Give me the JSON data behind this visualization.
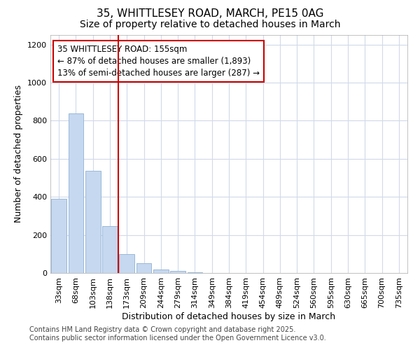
{
  "title_line1": "35, WHITTLESEY ROAD, MARCH, PE15 0AG",
  "title_line2": "Size of property relative to detached houses in March",
  "xlabel": "Distribution of detached houses by size in March",
  "ylabel": "Number of detached properties",
  "annotation_title": "35 WHITTLESEY ROAD: 155sqm",
  "annotation_line2": "← 87% of detached houses are smaller (1,893)",
  "annotation_line3": "13% of semi-detached houses are larger (287) →",
  "footer_line1": "Contains HM Land Registry data © Crown copyright and database right 2025.",
  "footer_line2": "Contains public sector information licensed under the Open Government Licence v3.0.",
  "categories": [
    "33sqm",
    "68sqm",
    "103sqm",
    "138sqm",
    "173sqm",
    "209sqm",
    "244sqm",
    "279sqm",
    "314sqm",
    "349sqm",
    "384sqm",
    "419sqm",
    "454sqm",
    "489sqm",
    "524sqm",
    "560sqm",
    "595sqm",
    "630sqm",
    "665sqm",
    "700sqm",
    "735sqm"
  ],
  "values": [
    390,
    840,
    535,
    248,
    98,
    52,
    18,
    10,
    5,
    0,
    0,
    0,
    0,
    0,
    0,
    0,
    0,
    0,
    0,
    0,
    0
  ],
  "bar_color": "#c5d8f0",
  "bar_edge_color": "#9ab8d8",
  "vline_x": 3.5,
  "vline_color": "#cc0000",
  "ylim": [
    0,
    1250
  ],
  "yticks": [
    0,
    200,
    400,
    600,
    800,
    1000,
    1200
  ],
  "bg_color": "#ffffff",
  "plot_bg_color": "#ffffff",
  "grid_color": "#d0daea",
  "annotation_box_color": "#ffffff",
  "annotation_box_edge_color": "#cc0000",
  "title_fontsize": 11,
  "subtitle_fontsize": 10,
  "axis_label_fontsize": 9,
  "tick_fontsize": 8,
  "annotation_fontsize": 8.5,
  "footer_fontsize": 7
}
